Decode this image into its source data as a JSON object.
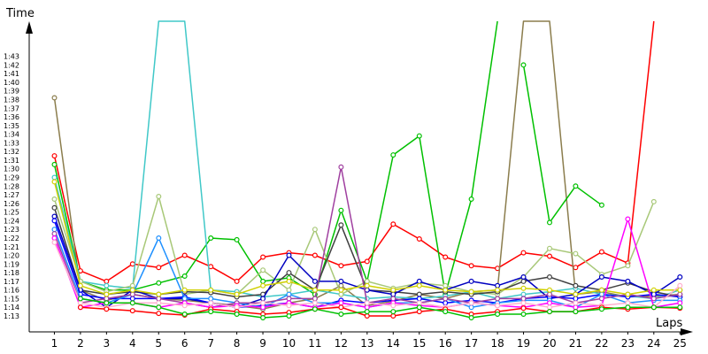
{
  "chart_data": {
    "type": "line",
    "title": "",
    "xlabel": "Laps",
    "ylabel": "Time",
    "y_unit": "seconds (displayed as m:ss)",
    "xlim": [
      0,
      25.5
    ],
    "ylim": [
      72,
      105
    ],
    "grid": false,
    "legend": "none",
    "x_ticks": [
      1,
      2,
      3,
      4,
      5,
      6,
      7,
      8,
      9,
      10,
      11,
      12,
      13,
      14,
      15,
      16,
      17,
      18,
      19,
      20,
      21,
      22,
      23,
      24,
      25
    ],
    "y_ticks": [
      "1:13",
      "1:14",
      "1:15",
      "1:16",
      "1:17",
      "1:18",
      "1:19",
      "1:20",
      "1:21",
      "1:22",
      "1:23",
      "1:24",
      "1:25",
      "1:26",
      "1:27",
      "1:28",
      "1:29",
      "1:30",
      "1:31",
      "1:32",
      "1:33",
      "1:34",
      "1:35",
      "1:36",
      "1:37",
      "1:38",
      "1:39",
      "1:40",
      "1:41",
      "1:42",
      "1:43"
    ],
    "y_tick_values": [
      73,
      74,
      75,
      76,
      77,
      78,
      79,
      80,
      81,
      82,
      83,
      84,
      85,
      86,
      87,
      88,
      89,
      90,
      91,
      92,
      93,
      94,
      95,
      96,
      97,
      98,
      99,
      100,
      101,
      102,
      103
    ],
    "series": [
      {
        "color": "#ff0000",
        "values": [
          91.5,
          78.2,
          77.0,
          79.0,
          78.6,
          80.0,
          78.7,
          77.0,
          79.8,
          80.3,
          80.0,
          78.8,
          79.3,
          83.6,
          81.9,
          79.8,
          78.8,
          78.5,
          80.3,
          79.9,
          78.6,
          80.4,
          79.1,
          120.0
        ]
      },
      {
        "color": "#8b7d4d",
        "values": [
          98.2,
          76.0,
          74.8,
          75.5,
          75.0,
          74.8,
          74.5,
          74.2,
          73.8,
          74.5,
          75.0,
          76.5,
          74.2,
          74.7,
          75.5,
          75.0,
          75.8,
          76.0,
          110.0,
          110.0,
          75.5,
          75.8,
          75.2,
          75.3,
          75.5
        ]
      },
      {
        "color": "#00c000",
        "values": [
          90.5,
          77.0,
          76.0,
          76.0,
          76.8,
          77.6,
          82.0,
          81.8,
          77.0,
          77.4,
          75.5,
          85.2,
          77.0,
          91.6,
          93.8,
          75.5,
          86.5,
          110.0
        ]
      },
      {
        "color": "#00c000",
        "values": [
          null,
          null,
          null,
          null,
          null,
          null,
          null,
          null,
          null,
          null,
          null,
          null,
          null,
          null,
          null,
          null,
          null,
          null,
          102.0,
          83.8,
          88.0,
          85.8
        ]
      },
      {
        "color": "#40c8c8",
        "values": [
          89.0,
          77.0,
          76.5,
          76.2,
          120.0,
          120.0,
          76.0,
          75.8,
          75.2,
          75.5,
          76.0,
          75.5,
          75.0,
          75.2,
          75.0,
          75.3,
          75.8,
          75.0,
          75.5,
          75.8,
          76.2,
          75.5,
          75.3,
          75.0,
          76.0
        ]
      },
      {
        "color": "#a8c878",
        "values": [
          86.5,
          77.0,
          75.8,
          76.5,
          86.8,
          75.5,
          76.0,
          75.5,
          78.3,
          76.0,
          83.0,
          75.5,
          77.0,
          76.2,
          76.8,
          76.5,
          75.8,
          75.5,
          77.5,
          80.8,
          80.2,
          77.8,
          78.8,
          86.2
        ]
      },
      {
        "color": "#404040",
        "values": [
          85.5,
          76.0,
          75.5,
          75.8,
          75.5,
          75.8,
          75.7,
          75.2,
          75.5,
          78.0,
          76.0,
          83.5,
          76.0,
          75.8,
          75.5,
          75.8,
          75.5,
          75.8,
          77.0,
          77.5,
          76.5,
          76.0,
          76.8,
          75.8,
          75.2
        ]
      },
      {
        "color": "#0000c0",
        "values": [
          84.5,
          76.0,
          74.0,
          76.0,
          75.0,
          75.0,
          74.5,
          74.0,
          75.0,
          80.0,
          77.0,
          77.0,
          76.0,
          75.5,
          77.0,
          76.0,
          77.0,
          76.5,
          77.5,
          75.0,
          75.5,
          77.5,
          77.0,
          75.5,
          77.5
        ]
      },
      {
        "color": "#0000ff",
        "values": [
          84.0,
          75.5,
          75.0,
          75.0,
          75.0,
          75.2,
          74.5,
          74.0,
          74.2,
          74.5,
          74.0,
          74.8,
          74.5,
          74.8,
          75.0,
          74.5,
          74.8,
          74.5,
          75.0,
          75.2,
          75.0,
          75.5,
          75.2,
          75.5,
          75.2
        ]
      },
      {
        "color": "#1e90ff",
        "values": [
          83.0,
          75.0,
          74.5,
          75.5,
          82.0,
          75.0,
          75.0,
          74.5,
          74.0,
          75.5,
          74.5,
          74.5,
          74.0,
          74.5,
          74.5,
          75.0,
          74.0,
          74.5,
          74.8,
          74.8,
          74.0,
          75.5,
          74.5,
          74.8,
          74.8
        ]
      },
      {
        "color": "#a040a0",
        "values": [
          82.5,
          74.5,
          75.0,
          75.5,
          75.0,
          74.5,
          74.0,
          74.5,
          74.5,
          75.0,
          75.0,
          90.2,
          74.5,
          75.0,
          74.5,
          75.0,
          74.5,
          75.0,
          75.0,
          75.5,
          74.5,
          75.0,
          75.5,
          75.0,
          75.5
        ]
      },
      {
        "color": "#d0d000",
        "values": [
          88.5,
          76.5,
          75.5,
          76.0,
          75.5,
          76.0,
          76.0,
          75.5,
          76.5,
          77.0,
          76.0,
          76.0,
          76.5,
          76.0,
          76.5,
          76.0,
          75.8,
          76.0,
          76.2,
          76.0,
          75.5,
          76.0,
          75.5,
          76.0,
          76.0
        ]
      },
      {
        "color": "#ff00ff",
        "values": [
          82.0,
          74.0,
          74.5,
          74.5,
          74.0,
          74.5,
          74.0,
          74.2,
          74.0,
          74.5,
          74.0,
          74.5,
          74.0,
          74.5,
          74.2,
          74.0,
          74.5,
          74.2,
          74.0,
          74.5,
          74.0,
          74.2,
          84.2,
          74.0,
          74.5
        ]
      },
      {
        "color": "#ffb0d0",
        "values": [
          81.5,
          74.5,
          74.0,
          74.5,
          74.5,
          74.2,
          74.5,
          74.0,
          74.5,
          74.2,
          74.5,
          74.0,
          74.5,
          74.2,
          74.5,
          74.0,
          74.5,
          74.2,
          74.5,
          74.0,
          74.5,
          74.2,
          74.5,
          74.0,
          76.5
        ]
      },
      {
        "color": "#ff0000",
        "values": [
          null,
          74.0,
          73.8,
          73.6,
          73.3,
          73.1,
          73.8,
          73.5,
          73.2,
          73.4,
          73.8,
          74.0,
          73.0,
          73.0,
          73.5,
          73.8,
          73.2,
          73.5,
          73.9,
          73.5,
          73.5,
          74.0,
          73.8,
          74.0,
          73.9
        ]
      },
      {
        "color": "#00c000",
        "values": [
          null,
          75.0,
          74.5,
          74.5,
          74.0,
          73.2,
          73.5,
          73.2,
          72.8,
          73.0,
          73.8,
          73.2,
          73.5,
          73.5,
          74.0,
          73.5,
          72.8,
          73.2,
          73.2,
          73.5,
          73.5,
          73.8,
          74.0,
          74.0,
          74.0
        ]
      }
    ]
  }
}
